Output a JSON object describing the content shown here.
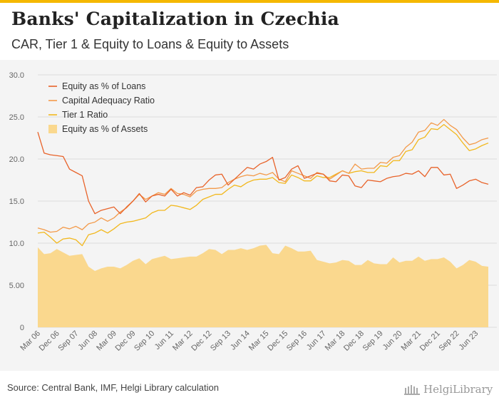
{
  "header": {
    "title": "Banks' Capitalization in Czechia",
    "subtitle": "CAR, Tier 1 & Equity to Loans & Equity to Assets"
  },
  "footer": {
    "source": "Source: Central Bank, IMF, Helgi Library calculation",
    "brand": "HelgiLibrary"
  },
  "colors": {
    "equity_loans": "#e8632a",
    "car": "#f39a4a",
    "tier1": "#f2b81d",
    "equity_assets": "#fad88e",
    "accent": "#f5b800"
  },
  "chart_data": {
    "type": "line",
    "x_tick_labels": [
      "Mar 06",
      "Dec 06",
      "Sep 07",
      "Jun 08",
      "Mar 09",
      "Dec 09",
      "Sep 10",
      "Jun 11",
      "Mar 12",
      "Dec 12",
      "Sep 13",
      "Jun 14",
      "Mar 15",
      "Dec 15",
      "Sep 16",
      "Jun 17",
      "Mar 18",
      "Dec 18",
      "Sep 19",
      "Jun 20",
      "Mar 21",
      "Dec 21",
      "Sep 22",
      "Jun 23"
    ],
    "y_ticks": [
      "0",
      "5.00",
      "10.0",
      "15.0",
      "20.0",
      "25.0",
      "30.0"
    ],
    "ylim": [
      0,
      30
    ],
    "grid": true,
    "legend_position": "top-left",
    "x_start": "Mar 06",
    "x_end": "Jun 23",
    "frequency": "quarterly",
    "series": [
      {
        "name": "Equity as % of Loans",
        "kind": "line",
        "color": "#e8632a",
        "values": [
          23.2,
          20.7,
          20.5,
          20.4,
          20.3,
          18.8,
          18.4,
          18.0,
          15.0,
          13.5,
          13.9,
          14.1,
          14.3,
          13.5,
          14.3,
          15.0,
          15.9,
          14.9,
          15.6,
          15.8,
          15.6,
          16.4,
          15.6,
          16.0,
          15.7,
          16.6,
          16.7,
          17.5,
          18.1,
          18.2,
          16.9,
          17.6,
          18.3,
          19.0,
          18.8,
          19.4,
          19.7,
          20.2,
          17.5,
          17.8,
          18.8,
          19.2,
          17.7,
          18.0,
          18.3,
          18.2,
          17.4,
          17.3,
          18.1,
          18.0,
          16.8,
          16.6,
          17.5,
          17.4,
          17.3,
          17.7,
          17.9,
          18.0,
          18.3,
          18.2,
          18.6,
          17.9,
          19.0,
          19.0,
          18.1,
          18.2,
          16.5,
          16.9,
          17.4,
          17.6,
          17.2,
          17.0
        ]
      },
      {
        "name": "Capital Adequacy Ratio",
        "kind": "line",
        "color": "#f39a4a",
        "values": [
          11.8,
          11.6,
          11.3,
          11.4,
          11.9,
          11.7,
          12.0,
          11.6,
          12.3,
          12.5,
          13.0,
          12.6,
          13.0,
          13.7,
          14.2,
          15.0,
          15.8,
          15.2,
          15.6,
          16.0,
          15.8,
          16.5,
          15.9,
          15.8,
          15.5,
          16.2,
          16.4,
          16.5,
          16.5,
          16.6,
          17.2,
          17.6,
          17.9,
          18.1,
          18.0,
          18.3,
          18.1,
          18.4,
          17.6,
          17.3,
          18.6,
          18.3,
          18.0,
          17.7,
          18.4,
          18.2,
          17.6,
          18.1,
          18.6,
          18.3,
          19.4,
          18.8,
          18.9,
          18.9,
          19.6,
          19.5,
          20.2,
          20.4,
          21.4,
          22.0,
          23.2,
          23.4,
          24.3,
          24.0,
          24.7,
          24.0,
          23.5,
          22.5,
          21.7,
          21.9,
          22.3,
          22.5
        ]
      },
      {
        "name": "Tier 1 Ratio",
        "kind": "line",
        "color": "#f2b81d",
        "values": [
          11.2,
          11.3,
          10.7,
          10.0,
          10.5,
          10.6,
          10.4,
          9.7,
          11.0,
          11.2,
          11.6,
          11.2,
          11.7,
          12.3,
          12.5,
          12.6,
          12.8,
          13.0,
          13.6,
          13.9,
          13.9,
          14.5,
          14.4,
          14.2,
          14.0,
          14.5,
          15.2,
          15.5,
          15.8,
          15.8,
          16.4,
          16.9,
          16.7,
          17.2,
          17.5,
          17.6,
          17.6,
          17.8,
          17.2,
          17.1,
          18.1,
          17.8,
          17.4,
          17.4,
          18.0,
          17.8,
          17.8,
          18.2,
          18.6,
          18.3,
          18.5,
          18.6,
          18.4,
          18.4,
          19.2,
          19.1,
          19.8,
          19.8,
          20.9,
          21.1,
          22.3,
          22.6,
          23.6,
          23.5,
          24.1,
          23.5,
          22.9,
          21.9,
          21.0,
          21.2,
          21.6,
          21.9
        ]
      },
      {
        "name": "Equity as % of Assets",
        "kind": "area",
        "color": "#fad88e",
        "values": [
          9.5,
          8.7,
          8.8,
          9.3,
          8.9,
          8.5,
          8.6,
          8.7,
          7.2,
          6.7,
          7.0,
          7.2,
          7.2,
          7.0,
          7.4,
          7.9,
          8.2,
          7.5,
          8.1,
          8.3,
          8.5,
          8.1,
          8.2,
          8.3,
          8.4,
          8.4,
          8.8,
          9.3,
          9.2,
          8.7,
          9.2,
          9.2,
          9.4,
          9.2,
          9.4,
          9.7,
          9.8,
          8.8,
          8.7,
          9.7,
          9.4,
          9.0,
          9.0,
          9.1,
          8.0,
          7.8,
          7.6,
          7.7,
          8.0,
          7.9,
          7.4,
          7.4,
          8.0,
          7.6,
          7.5,
          7.5,
          8.3,
          7.7,
          7.9,
          7.9,
          8.4,
          7.9,
          8.1,
          8.1,
          8.3,
          7.8,
          7.0,
          7.4,
          8.0,
          7.8,
          7.3,
          7.2
        ]
      }
    ]
  }
}
